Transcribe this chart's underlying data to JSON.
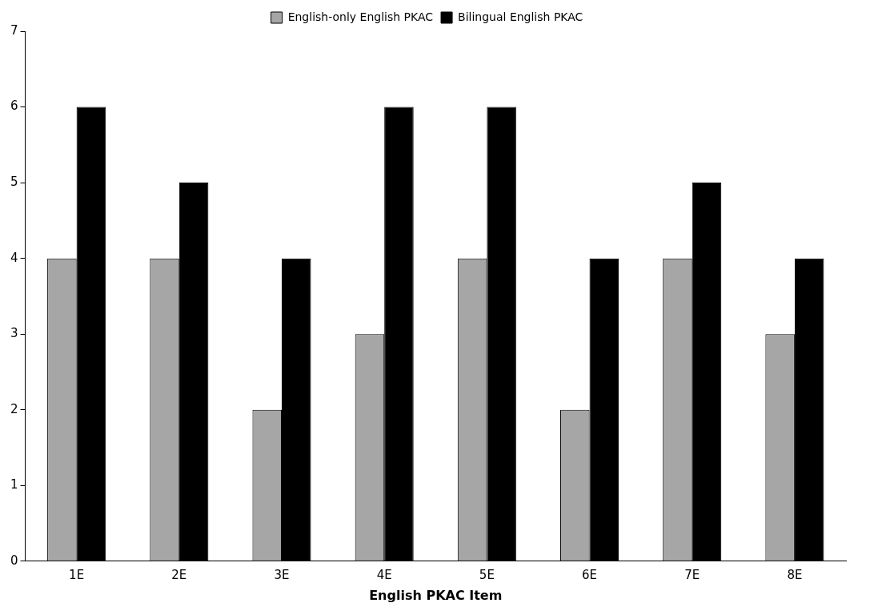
{
  "chart_data": {
    "type": "bar",
    "xlabel": "English PKAC Item",
    "categories": [
      "1E",
      "2E",
      "3E",
      "4E",
      "5E",
      "6E",
      "7E",
      "8E"
    ],
    "series": [
      {
        "name": "English-only English PKAC",
        "color": "#a6a6a6",
        "values": [
          4,
          4,
          2,
          3,
          4,
          2,
          4,
          3
        ]
      },
      {
        "name": "Bilingual English PKAC",
        "color": "#000000",
        "values": [
          6,
          5,
          4,
          6,
          6,
          4,
          5,
          4
        ]
      }
    ],
    "ylim": [
      0,
      7
    ],
    "yticks": [
      0,
      1,
      2,
      3,
      4,
      5,
      6,
      7
    ],
    "grid": false,
    "legend": "top"
  }
}
